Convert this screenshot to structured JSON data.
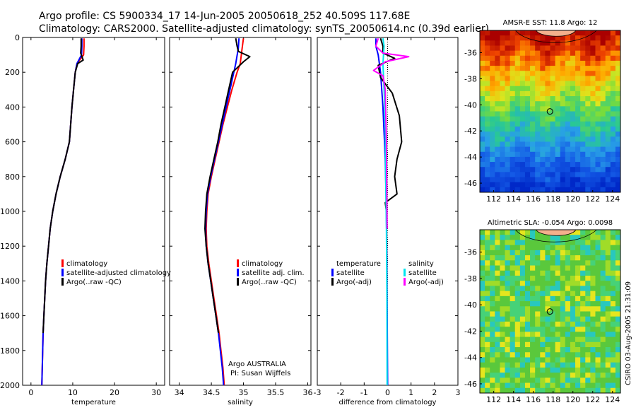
{
  "header": {
    "line1": "Argo profile: CS 5900334_17 14-Jun-2005 20050618_252 40.509S 117.68E",
    "line2": "Climatology: CARS2000. Satellite-adjusted climatology: synTS_20050614.nc (0.39d earlier)"
  },
  "colors": {
    "climatology": "#ff0000",
    "satellite": "#0000ff",
    "argo": "#000000",
    "sal_satellite": "#00e5ee",
    "sal_argo": "#ff00ff"
  },
  "footer": {
    "credit1": "Argo AUSTRALIA",
    "credit2": "PI: Susan Wijffels",
    "stamp": "CSIRO 03-Aug-2005 21:31:09"
  },
  "chart_data": [
    {
      "type": "line",
      "id": "temperature",
      "xlabel": "temperature",
      "xlim": [
        -2,
        32
      ],
      "ylim": [
        2000,
        0
      ],
      "xticks": [
        0,
        10,
        20,
        30
      ],
      "yticks": [
        0,
        200,
        400,
        600,
        800,
        1000,
        1200,
        1400,
        1600,
        1800,
        2000
      ],
      "legend": [
        "climatology",
        "satellite-adjusted climatology",
        "Argo(..raw -QC)"
      ],
      "series": [
        {
          "name": "climatology",
          "color": "#ff0000",
          "points": [
            [
              12.7,
              5
            ],
            [
              12.7,
              50
            ],
            [
              12.6,
              100
            ],
            [
              11.0,
              150
            ],
            [
              10.6,
              200
            ],
            [
              10.2,
              300
            ],
            [
              9.8,
              400
            ],
            [
              9.5,
              500
            ],
            [
              9.2,
              600
            ],
            [
              8.2,
              700
            ],
            [
              7.0,
              800
            ],
            [
              6.0,
              900
            ],
            [
              5.2,
              1000
            ],
            [
              4.6,
              1100
            ],
            [
              4.2,
              1200
            ],
            [
              3.8,
              1300
            ],
            [
              3.5,
              1400
            ],
            [
              3.3,
              1500
            ],
            [
              3.1,
              1600
            ],
            [
              2.9,
              1700
            ],
            [
              2.8,
              1800
            ],
            [
              2.7,
              1900
            ],
            [
              2.6,
              2000
            ]
          ]
        },
        {
          "name": "satellite",
          "color": "#0000ff",
          "points": [
            [
              12.2,
              5
            ],
            [
              12.2,
              50
            ],
            [
              12.1,
              100
            ],
            [
              11.0,
              150
            ],
            [
              10.6,
              200
            ],
            [
              10.2,
              300
            ],
            [
              9.8,
              400
            ],
            [
              9.5,
              500
            ],
            [
              9.2,
              600
            ],
            [
              8.2,
              700
            ],
            [
              7.0,
              800
            ],
            [
              6.0,
              900
            ],
            [
              5.2,
              1000
            ],
            [
              4.6,
              1100
            ],
            [
              4.2,
              1200
            ],
            [
              3.8,
              1300
            ],
            [
              3.5,
              1400
            ],
            [
              3.3,
              1500
            ],
            [
              3.1,
              1600
            ],
            [
              2.9,
              1700
            ],
            [
              2.8,
              1800
            ],
            [
              2.7,
              1900
            ],
            [
              2.6,
              2000
            ]
          ]
        },
        {
          "name": "Argo",
          "color": "#000000",
          "points": [
            [
              12.0,
              5
            ],
            [
              12.0,
              50
            ],
            [
              11.9,
              90
            ],
            [
              12.5,
              130
            ],
            [
              11.2,
              150
            ],
            [
              10.6,
              200
            ],
            [
              10.2,
              300
            ],
            [
              9.8,
              400
            ],
            [
              9.5,
              500
            ],
            [
              9.2,
              600
            ],
            [
              8.2,
              700
            ],
            [
              7.0,
              800
            ],
            [
              6.0,
              900
            ],
            [
              5.2,
              1000
            ],
            [
              4.6,
              1100
            ],
            [
              4.2,
              1200
            ],
            [
              3.8,
              1300
            ],
            [
              3.5,
              1400
            ],
            [
              3.3,
              1500
            ],
            [
              3.1,
              1600
            ],
            [
              2.9,
              1700
            ]
          ]
        }
      ]
    },
    {
      "type": "line",
      "id": "salinity",
      "xlabel": "salinity",
      "xlim": [
        33.85,
        36.05
      ],
      "ylim": [
        2000,
        0
      ],
      "xticks": [
        34,
        34.5,
        35,
        35.5,
        36
      ],
      "legend": [
        "climatology",
        "satellite adj. clim.",
        "Argo(..raw -QC)"
      ],
      "series": [
        {
          "name": "climatology",
          "color": "#ff0000",
          "points": [
            [
              35.0,
              5
            ],
            [
              34.98,
              60
            ],
            [
              34.95,
              150
            ],
            [
              34.9,
              200
            ],
            [
              34.82,
              300
            ],
            [
              34.75,
              400
            ],
            [
              34.68,
              500
            ],
            [
              34.62,
              600
            ],
            [
              34.56,
              700
            ],
            [
              34.5,
              800
            ],
            [
              34.45,
              900
            ],
            [
              34.43,
              1000
            ],
            [
              34.42,
              1100
            ],
            [
              34.43,
              1200
            ],
            [
              34.46,
              1300
            ],
            [
              34.5,
              1400
            ],
            [
              34.54,
              1500
            ],
            [
              34.58,
              1600
            ],
            [
              34.62,
              1700
            ],
            [
              34.65,
              1800
            ],
            [
              34.68,
              1900
            ],
            [
              34.7,
              2000
            ]
          ]
        },
        {
          "name": "satellite",
          "color": "#0000ff",
          "points": [
            [
              34.93,
              5
            ],
            [
              34.92,
              60
            ],
            [
              34.88,
              150
            ],
            [
              34.85,
              200
            ],
            [
              34.79,
              300
            ],
            [
              34.73,
              400
            ],
            [
              34.67,
              500
            ],
            [
              34.61,
              600
            ],
            [
              34.55,
              700
            ],
            [
              34.49,
              800
            ],
            [
              34.44,
              900
            ],
            [
              34.42,
              1000
            ],
            [
              34.41,
              1100
            ],
            [
              34.42,
              1200
            ],
            [
              34.45,
              1300
            ],
            [
              34.49,
              1400
            ],
            [
              34.53,
              1500
            ],
            [
              34.57,
              1600
            ],
            [
              34.61,
              1700
            ],
            [
              34.64,
              1800
            ],
            [
              34.67,
              1900
            ],
            [
              34.69,
              2000
            ]
          ]
        },
        {
          "name": "Argo",
          "color": "#000000",
          "points": [
            [
              34.88,
              5
            ],
            [
              34.9,
              50
            ],
            [
              34.92,
              80
            ],
            [
              35.1,
              110
            ],
            [
              35.0,
              140
            ],
            [
              34.83,
              200
            ],
            [
              34.77,
              300
            ],
            [
              34.71,
              400
            ],
            [
              34.65,
              500
            ],
            [
              34.6,
              600
            ],
            [
              34.54,
              700
            ],
            [
              34.48,
              800
            ],
            [
              34.43,
              900
            ],
            [
              34.41,
              1000
            ],
            [
              34.4,
              1100
            ],
            [
              34.42,
              1200
            ],
            [
              34.45,
              1300
            ],
            [
              34.49,
              1400
            ],
            [
              34.53,
              1500
            ],
            [
              34.57,
              1600
            ],
            [
              34.61,
              1700
            ]
          ]
        }
      ]
    },
    {
      "type": "line",
      "id": "difference",
      "xlabel": "difference from climatology",
      "xlim": [
        -3,
        3
      ],
      "ylim": [
        2000,
        0
      ],
      "xticks": [
        -3,
        -2,
        -1,
        0,
        1,
        2,
        3
      ],
      "legend": [
        "temperature",
        "satellite",
        "Argo(-adj)",
        "salinity",
        "satellite",
        "Argo(-adj)"
      ],
      "series": [
        {
          "name": "temperature satellite",
          "color": "#0000ff",
          "points": [
            [
              -0.5,
              5
            ],
            [
              -0.5,
              50
            ],
            [
              -0.4,
              100
            ],
            [
              -0.3,
              200
            ],
            [
              -0.2,
              400
            ],
            [
              -0.1,
              700
            ],
            [
              -0.05,
              1000
            ],
            [
              -0.02,
              1500
            ],
            [
              0,
              2000
            ]
          ]
        },
        {
          "name": "temperature Argo(-adj)",
          "color": "#000000",
          "points": [
            [
              -0.3,
              5
            ],
            [
              -0.2,
              50
            ],
            [
              -0.2,
              90
            ],
            [
              0.3,
              120
            ],
            [
              -0.4,
              160
            ],
            [
              -0.3,
              230
            ],
            [
              0.2,
              320
            ],
            [
              0.5,
              450
            ],
            [
              0.6,
              600
            ],
            [
              0.4,
              700
            ],
            [
              0.3,
              800
            ],
            [
              0.4,
              900
            ],
            [
              -0.1,
              950
            ],
            [
              -0.05,
              1000
            ],
            [
              -0.02,
              1100
            ]
          ]
        },
        {
          "name": "salinity satellite",
          "color": "#00e5ee",
          "points": [
            [
              -0.2,
              5
            ],
            [
              -0.15,
              50
            ],
            [
              -0.2,
              150
            ],
            [
              -0.15,
              300
            ],
            [
              -0.1,
              500
            ],
            [
              -0.08,
              800
            ],
            [
              -0.05,
              1100
            ],
            [
              -0.03,
              1500
            ],
            [
              -0.02,
              2000
            ]
          ]
        },
        {
          "name": "salinity Argo(-adj)",
          "color": "#ff00ff",
          "points": [
            [
              -0.4,
              5
            ],
            [
              -0.5,
              50
            ],
            [
              -0.2,
              90
            ],
            [
              0.9,
              110
            ],
            [
              -0.1,
              140
            ],
            [
              -0.6,
              190
            ],
            [
              -0.2,
              220
            ],
            [
              -0.1,
              300
            ],
            [
              -0.05,
              600
            ],
            [
              -0.02,
              1100
            ]
          ]
        }
      ]
    },
    {
      "type": "heatmap",
      "id": "sst-map",
      "title": "AMSR-E SST: 11.8 Argo: 12",
      "xticks": [
        112,
        114,
        116,
        118,
        120,
        122,
        124
      ],
      "yticks": [
        -36,
        -38,
        -40,
        -42,
        -44,
        -46
      ],
      "xlim": [
        110.6,
        124.8
      ],
      "ylim": [
        -46.7,
        -34.3
      ],
      "argo_location": [
        117.68,
        -40.509
      ]
    },
    {
      "type": "heatmap",
      "id": "sla-map",
      "title": "Altimetric SLA: -0.054 Argo: 0.0098",
      "xticks": [
        112,
        114,
        116,
        118,
        120,
        122,
        124
      ],
      "yticks": [
        -36,
        -38,
        -40,
        -42,
        -44,
        -46
      ],
      "xlim": [
        110.6,
        124.8
      ],
      "ylim": [
        -46.7,
        -34.3
      ],
      "argo_location": [
        117.68,
        -40.509
      ]
    }
  ]
}
